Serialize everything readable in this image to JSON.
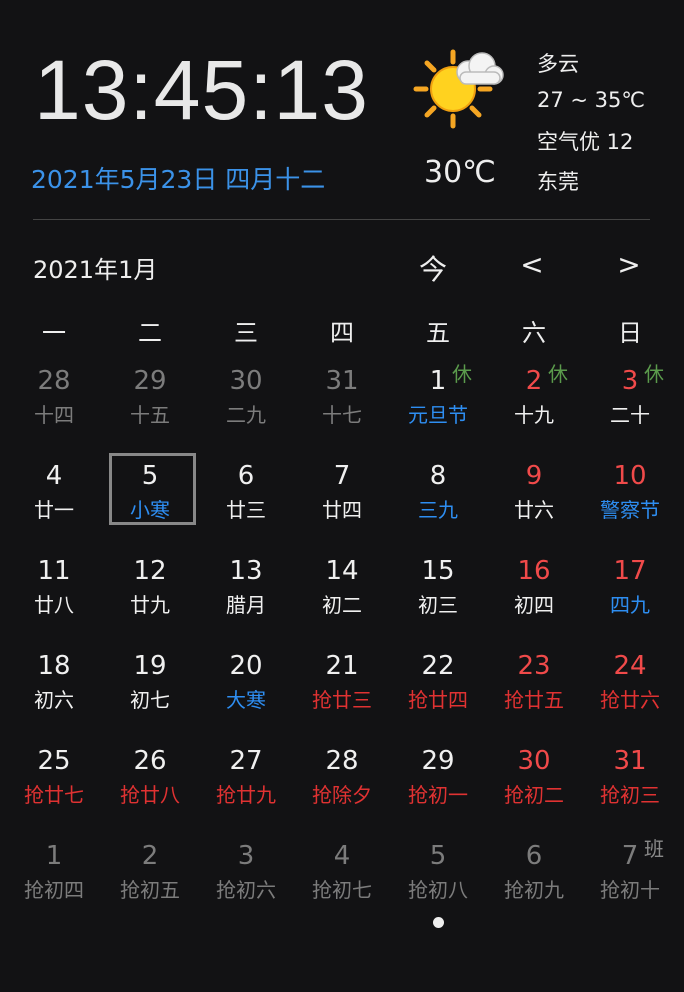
{
  "clock": "13:45:13",
  "date": "2021年5月23日 四月十二",
  "weather": {
    "icon": "sun-cloud-icon",
    "temp": "30℃",
    "condition": "多云",
    "range": "27 ~ 35℃",
    "air": "空气优 12",
    "city": "东莞"
  },
  "calendar": {
    "month_title": "2021年1月",
    "today_label": "今",
    "prev_label": "<",
    "next_label": ">",
    "weekdays": [
      "一",
      "二",
      "三",
      "四",
      "五",
      "六",
      "日"
    ],
    "colors": {
      "dim": "#7c7c7c",
      "normal": "#f0f0f0",
      "red": "#f04a4a",
      "blue": "#2e8ef2",
      "lunar_red": "#e03232",
      "rest": "#5b9b4c",
      "work": "#8a8a8a"
    },
    "selected_day": "5",
    "cells": [
      {
        "d": "28",
        "l": "十四",
        "dc": "dim",
        "lc": "dim"
      },
      {
        "d": "29",
        "l": "十五",
        "dc": "dim",
        "lc": "dim"
      },
      {
        "d": "30",
        "l": "二九",
        "dc": "dim",
        "lc": "dim"
      },
      {
        "d": "31",
        "l": "十七",
        "dc": "dim",
        "lc": "dim"
      },
      {
        "d": "1",
        "l": "元旦节",
        "dc": "normal",
        "lc": "blue",
        "badge": "休"
      },
      {
        "d": "2",
        "l": "十九",
        "dc": "red",
        "lc": "normal",
        "badge": "休"
      },
      {
        "d": "3",
        "l": "二十",
        "dc": "red",
        "lc": "normal",
        "badge": "休"
      },
      {
        "d": "4",
        "l": "廿一",
        "dc": "normal",
        "lc": "normal"
      },
      {
        "d": "5",
        "l": "小寒",
        "dc": "normal",
        "lc": "blue",
        "sel": true
      },
      {
        "d": "6",
        "l": "廿三",
        "dc": "normal",
        "lc": "normal"
      },
      {
        "d": "7",
        "l": "廿四",
        "dc": "normal",
        "lc": "normal"
      },
      {
        "d": "8",
        "l": "三九",
        "dc": "normal",
        "lc": "blue"
      },
      {
        "d": "9",
        "l": "廿六",
        "dc": "red",
        "lc": "normal"
      },
      {
        "d": "10",
        "l": "警察节",
        "dc": "red",
        "lc": "blue"
      },
      {
        "d": "11",
        "l": "廿八",
        "dc": "normal",
        "lc": "normal"
      },
      {
        "d": "12",
        "l": "廿九",
        "dc": "normal",
        "lc": "normal"
      },
      {
        "d": "13",
        "l": "腊月",
        "dc": "normal",
        "lc": "normal"
      },
      {
        "d": "14",
        "l": "初二",
        "dc": "normal",
        "lc": "normal"
      },
      {
        "d": "15",
        "l": "初三",
        "dc": "normal",
        "lc": "normal"
      },
      {
        "d": "16",
        "l": "初四",
        "dc": "red",
        "lc": "normal"
      },
      {
        "d": "17",
        "l": "四九",
        "dc": "red",
        "lc": "blue"
      },
      {
        "d": "18",
        "l": "初六",
        "dc": "normal",
        "lc": "normal"
      },
      {
        "d": "19",
        "l": "初七",
        "dc": "normal",
        "lc": "normal"
      },
      {
        "d": "20",
        "l": "大寒",
        "dc": "normal",
        "lc": "blue"
      },
      {
        "d": "21",
        "l": "抢廿三",
        "dc": "normal",
        "lc": "lunar_red"
      },
      {
        "d": "22",
        "l": "抢廿四",
        "dc": "normal",
        "lc": "lunar_red"
      },
      {
        "d": "23",
        "l": "抢廿五",
        "dc": "red",
        "lc": "lunar_red"
      },
      {
        "d": "24",
        "l": "抢廿六",
        "dc": "red",
        "lc": "lunar_red"
      },
      {
        "d": "25",
        "l": "抢廿七",
        "dc": "normal",
        "lc": "lunar_red"
      },
      {
        "d": "26",
        "l": "抢廿八",
        "dc": "normal",
        "lc": "lunar_red"
      },
      {
        "d": "27",
        "l": "抢廿九",
        "dc": "normal",
        "lc": "lunar_red"
      },
      {
        "d": "28",
        "l": "抢除夕",
        "dc": "normal",
        "lc": "lunar_red"
      },
      {
        "d": "29",
        "l": "抢初一",
        "dc": "normal",
        "lc": "lunar_red"
      },
      {
        "d": "30",
        "l": "抢初二",
        "dc": "red",
        "lc": "lunar_red"
      },
      {
        "d": "31",
        "l": "抢初三",
        "dc": "red",
        "lc": "lunar_red"
      },
      {
        "d": "1",
        "l": "抢初四",
        "dc": "dim",
        "lc": "dim"
      },
      {
        "d": "2",
        "l": "抢初五",
        "dc": "dim",
        "lc": "dim"
      },
      {
        "d": "3",
        "l": "抢初六",
        "dc": "dim",
        "lc": "dim"
      },
      {
        "d": "4",
        "l": "抢初七",
        "dc": "dim",
        "lc": "dim"
      },
      {
        "d": "5",
        "l": "抢初八",
        "dc": "dim",
        "lc": "dim"
      },
      {
        "d": "6",
        "l": "抢初九",
        "dc": "dim",
        "lc": "dim"
      },
      {
        "d": "7",
        "l": "抢初十",
        "dc": "dim",
        "lc": "dim",
        "badge": "班",
        "badgec": "work"
      }
    ]
  }
}
